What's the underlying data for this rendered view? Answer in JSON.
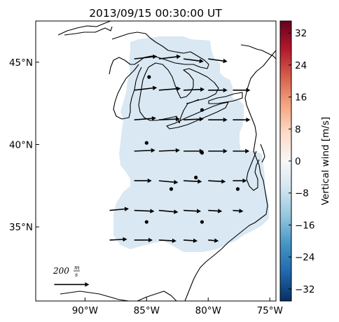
{
  "chart_data": {
    "type": "vector-map",
    "title": "2013/09/15 00:30:00 UT",
    "x_ticks": [
      "90°W",
      "85°W",
      "80°W",
      "75°W"
    ],
    "x_tick_values": [
      -90,
      -85,
      -80,
      -75
    ],
    "y_ticks": [
      "45°N",
      "40°N",
      "35°N"
    ],
    "y_tick_values": [
      45,
      40,
      35
    ],
    "xlim": [
      -94,
      -74.5
    ],
    "ylim": [
      30.5,
      47.5
    ],
    "colorbar": {
      "label": "Vertical wind [m/s]",
      "ticks": [
        "32",
        "24",
        "16",
        "8",
        "0",
        "−8",
        "−16",
        "−24",
        "−32"
      ],
      "tick_values": [
        32,
        24,
        16,
        8,
        0,
        -8,
        -16,
        -24,
        -32
      ],
      "range": [
        -35,
        35
      ],
      "colormap": "RdBu_r",
      "colors": [
        "#053061",
        "#2166ac",
        "#4393c3",
        "#92c5de",
        "#d1e5f0",
        "#f7f7f7",
        "#fddbc7",
        "#f4a582",
        "#d6604d",
        "#b2182b",
        "#67001f"
      ]
    },
    "field_color": "#d9e8f3",
    "vertical_wind_estimate": -5,
    "reference_arrow": {
      "label": "200",
      "unit_num": "m",
      "unit_den": "s",
      "speed": 200,
      "lon": -92.5,
      "lat": 31.5
    },
    "stations": [
      {
        "lon": -84.8,
        "lat": 44.1
      },
      {
        "lon": -80.5,
        "lat": 42.1
      },
      {
        "lon": -85.0,
        "lat": 40.1
      },
      {
        "lon": -80.5,
        "lat": 39.5
      },
      {
        "lon": -81.0,
        "lat": 38.0
      },
      {
        "lon": -83.0,
        "lat": 37.3
      },
      {
        "lon": -77.6,
        "lat": 37.3
      },
      {
        "lon": -85.0,
        "lat": 35.3
      },
      {
        "lon": -80.5,
        "lat": 35.3
      }
    ],
    "wind_vectors": [
      {
        "lon": -86.0,
        "lat": 45.2,
        "u": 130,
        "v": 15
      },
      {
        "lon": -84.0,
        "lat": 45.2,
        "u": 125,
        "v": 15
      },
      {
        "lon": -82.0,
        "lat": 45.2,
        "u": 115,
        "v": -15
      },
      {
        "lon": -80.0,
        "lat": 45.2,
        "u": 110,
        "v": -15
      },
      {
        "lon": -86.0,
        "lat": 43.3,
        "u": 130,
        "v": 15
      },
      {
        "lon": -84.0,
        "lat": 43.3,
        "u": 125,
        "v": 10
      },
      {
        "lon": -82.0,
        "lat": 43.3,
        "u": 120,
        "v": 5
      },
      {
        "lon": -80.0,
        "lat": 43.3,
        "u": 110,
        "v": 0
      },
      {
        "lon": -78.0,
        "lat": 43.3,
        "u": 100,
        "v": 0
      },
      {
        "lon": -86.0,
        "lat": 41.5,
        "u": 125,
        "v": 10
      },
      {
        "lon": -84.0,
        "lat": 41.5,
        "u": 120,
        "v": 5
      },
      {
        "lon": -82.0,
        "lat": 41.5,
        "u": 115,
        "v": 5
      },
      {
        "lon": -80.0,
        "lat": 41.5,
        "u": 110,
        "v": 0
      },
      {
        "lon": -78.0,
        "lat": 41.5,
        "u": 100,
        "v": 0
      },
      {
        "lon": -86.0,
        "lat": 39.6,
        "u": 120,
        "v": 5
      },
      {
        "lon": -84.0,
        "lat": 39.6,
        "u": 120,
        "v": 5
      },
      {
        "lon": -82.0,
        "lat": 39.6,
        "u": 115,
        "v": 0
      },
      {
        "lon": -80.0,
        "lat": 39.6,
        "u": 110,
        "v": 0
      },
      {
        "lon": -78.0,
        "lat": 39.6,
        "u": 95,
        "v": 0
      },
      {
        "lon": -86.0,
        "lat": 37.8,
        "u": 100,
        "v": 0
      },
      {
        "lon": -84.0,
        "lat": 37.8,
        "u": 110,
        "v": -10
      },
      {
        "lon": -82.0,
        "lat": 37.8,
        "u": 105,
        "v": -5
      },
      {
        "lon": -80.0,
        "lat": 37.8,
        "u": 100,
        "v": -5
      },
      {
        "lon": -78.0,
        "lat": 37.8,
        "u": 80,
        "v": 0
      },
      {
        "lon": -88.0,
        "lat": 36.0,
        "u": 110,
        "v": 10
      },
      {
        "lon": -86.0,
        "lat": 36.0,
        "u": 115,
        "v": -5
      },
      {
        "lon": -84.0,
        "lat": 36.0,
        "u": 110,
        "v": -10
      },
      {
        "lon": -82.0,
        "lat": 36.0,
        "u": 100,
        "v": -5
      },
      {
        "lon": -80.0,
        "lat": 36.0,
        "u": 80,
        "v": -5
      },
      {
        "lon": -78.0,
        "lat": 36.0,
        "u": 60,
        "v": -5
      },
      {
        "lon": -88.0,
        "lat": 34.2,
        "u": 100,
        "v": 5
      },
      {
        "lon": -86.0,
        "lat": 34.2,
        "u": 105,
        "v": 0
      },
      {
        "lon": -84.0,
        "lat": 34.2,
        "u": 100,
        "v": -5
      },
      {
        "lon": -82.0,
        "lat": 34.2,
        "u": 80,
        "v": -5
      },
      {
        "lon": -80.0,
        "lat": 34.2,
        "u": 60,
        "v": -5
      }
    ]
  }
}
